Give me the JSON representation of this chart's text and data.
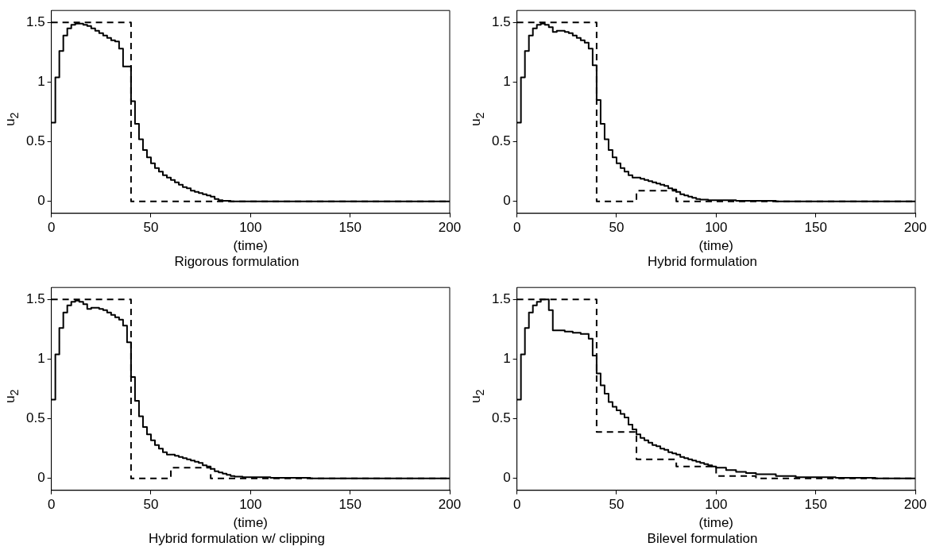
{
  "chart_data": [
    {
      "type": "step",
      "title": "Rigorous formulation",
      "xlabel": "(time)",
      "ylabel": "u$_{2}$",
      "xlim": [
        0,
        200
      ],
      "ylim": [
        -0.1,
        1.6
      ],
      "xticks": [
        0,
        50,
        100,
        150,
        200
      ],
      "yticks": [
        0,
        0.5,
        1,
        1.5
      ],
      "grid": false,
      "legend": false,
      "series": [
        {
          "color": "#000000",
          "line_style": "solid",
          "x": [
            0,
            2,
            4,
            6,
            8,
            10,
            12,
            14,
            16,
            18,
            20,
            22,
            24,
            26,
            28,
            30,
            32,
            34,
            36,
            38,
            40,
            42,
            44,
            46,
            48,
            50,
            52,
            54,
            56,
            58,
            60,
            62,
            64,
            66,
            68,
            70,
            72,
            74,
            76,
            78,
            80,
            82,
            84,
            86,
            90,
            200
          ],
          "values": [
            0.66,
            1.04,
            1.26,
            1.39,
            1.45,
            1.48,
            1.49,
            1.49,
            1.48,
            1.47,
            1.45,
            1.43,
            1.41,
            1.39,
            1.37,
            1.35,
            1.34,
            1.28,
            1.13,
            1.13,
            0.84,
            0.65,
            0.52,
            0.43,
            0.37,
            0.32,
            0.28,
            0.25,
            0.22,
            0.2,
            0.18,
            0.16,
            0.14,
            0.12,
            0.11,
            0.09,
            0.08,
            0.07,
            0.06,
            0.05,
            0.04,
            0.02,
            0.01,
            0.005,
            0,
            0
          ]
        },
        {
          "color": "#000000",
          "line_style": "dashed",
          "x": [
            0,
            40,
            200
          ],
          "values": [
            1.5,
            0,
            0
          ]
        }
      ]
    },
    {
      "type": "step",
      "title": "Hybrid formulation",
      "xlabel": "(time)",
      "ylabel": "u$_{2}$",
      "xlim": [
        0,
        200
      ],
      "ylim": [
        -0.1,
        1.6
      ],
      "xticks": [
        0,
        50,
        100,
        150,
        200
      ],
      "yticks": [
        0,
        0.5,
        1,
        1.5
      ],
      "grid": false,
      "legend": false,
      "series": [
        {
          "color": "#000000",
          "line_style": "solid",
          "x": [
            0,
            2,
            4,
            6,
            8,
            10,
            12,
            14,
            16,
            18,
            20,
            22,
            24,
            26,
            28,
            30,
            32,
            34,
            36,
            38,
            40,
            42,
            44,
            46,
            48,
            50,
            52,
            54,
            56,
            58,
            60,
            62,
            64,
            66,
            68,
            70,
            72,
            74,
            76,
            78,
            80,
            82,
            84,
            86,
            88,
            90,
            92,
            96,
            110,
            130,
            200
          ],
          "values": [
            0.66,
            1.04,
            1.26,
            1.39,
            1.45,
            1.48,
            1.49,
            1.48,
            1.46,
            1.42,
            1.43,
            1.43,
            1.42,
            1.41,
            1.39,
            1.37,
            1.35,
            1.33,
            1.28,
            1.14,
            0.85,
            0.65,
            0.52,
            0.43,
            0.37,
            0.32,
            0.28,
            0.25,
            0.22,
            0.2,
            0.2,
            0.19,
            0.18,
            0.17,
            0.16,
            0.15,
            0.14,
            0.13,
            0.11,
            0.1,
            0.08,
            0.06,
            0.05,
            0.04,
            0.03,
            0.02,
            0.015,
            0.01,
            0.005,
            0,
            0
          ]
        },
        {
          "color": "#000000",
          "line_style": "dashed",
          "x": [
            0,
            40,
            60,
            80,
            200
          ],
          "values": [
            1.5,
            0,
            0.09,
            0,
            0
          ]
        }
      ]
    },
    {
      "type": "step",
      "title": "Hybrid formulation w/ clipping",
      "xlabel": "(time)",
      "ylabel": "u$_{2}$",
      "xlim": [
        0,
        200
      ],
      "ylim": [
        -0.1,
        1.6
      ],
      "xticks": [
        0,
        50,
        100,
        150,
        200
      ],
      "yticks": [
        0,
        0.5,
        1,
        1.5
      ],
      "grid": false,
      "legend": false,
      "series": [
        {
          "color": "#000000",
          "line_style": "solid",
          "x": [
            0,
            2,
            4,
            6,
            8,
            10,
            12,
            14,
            16,
            18,
            20,
            22,
            24,
            26,
            28,
            30,
            32,
            34,
            36,
            38,
            40,
            42,
            44,
            46,
            48,
            50,
            52,
            54,
            56,
            58,
            60,
            62,
            64,
            66,
            68,
            70,
            72,
            74,
            76,
            78,
            80,
            82,
            84,
            86,
            88,
            90,
            92,
            96,
            110,
            130,
            200
          ],
          "values": [
            0.66,
            1.04,
            1.26,
            1.39,
            1.45,
            1.48,
            1.49,
            1.48,
            1.46,
            1.42,
            1.43,
            1.43,
            1.42,
            1.41,
            1.39,
            1.37,
            1.35,
            1.33,
            1.28,
            1.14,
            0.85,
            0.65,
            0.52,
            0.43,
            0.37,
            0.32,
            0.28,
            0.25,
            0.22,
            0.2,
            0.2,
            0.19,
            0.18,
            0.17,
            0.16,
            0.15,
            0.14,
            0.13,
            0.11,
            0.1,
            0.08,
            0.06,
            0.05,
            0.04,
            0.03,
            0.02,
            0.015,
            0.01,
            0.005,
            0,
            0
          ]
        },
        {
          "color": "#000000",
          "line_style": "dashed",
          "x": [
            0,
            40,
            60,
            80,
            200
          ],
          "values": [
            1.5,
            0,
            0.09,
            0,
            0
          ]
        }
      ]
    },
    {
      "type": "step",
      "title": "Bilevel formulation",
      "xlabel": "(time)",
      "ylabel": "u$_{2}$",
      "xlim": [
        0,
        200
      ],
      "ylim": [
        -0.1,
        1.6
      ],
      "xticks": [
        0,
        50,
        100,
        150,
        200
      ],
      "yticks": [
        0,
        0.5,
        1,
        1.5
      ],
      "grid": false,
      "legend": false,
      "series": [
        {
          "color": "#000000",
          "line_style": "solid",
          "x": [
            0,
            2,
            4,
            6,
            8,
            10,
            12,
            14,
            16,
            18,
            20,
            22,
            24,
            26,
            28,
            30,
            32,
            34,
            36,
            38,
            40,
            42,
            44,
            46,
            48,
            50,
            52,
            54,
            56,
            58,
            60,
            62,
            64,
            66,
            68,
            70,
            72,
            74,
            76,
            78,
            80,
            82,
            84,
            86,
            88,
            90,
            92,
            94,
            96,
            98,
            100,
            105,
            110,
            115,
            120,
            130,
            140,
            150,
            160,
            180,
            200
          ],
          "values": [
            0.66,
            1.04,
            1.26,
            1.39,
            1.45,
            1.48,
            1.5,
            1.5,
            1.41,
            1.24,
            1.24,
            1.24,
            1.23,
            1.23,
            1.22,
            1.22,
            1.21,
            1.21,
            1.17,
            1.03,
            0.88,
            0.78,
            0.71,
            0.64,
            0.6,
            0.57,
            0.54,
            0.51,
            0.45,
            0.41,
            0.37,
            0.34,
            0.32,
            0.3,
            0.28,
            0.27,
            0.25,
            0.24,
            0.22,
            0.21,
            0.2,
            0.18,
            0.17,
            0.16,
            0.15,
            0.14,
            0.13,
            0.12,
            0.11,
            0.1,
            0.09,
            0.07,
            0.055,
            0.045,
            0.035,
            0.02,
            0.01,
            0.01,
            0.005,
            0,
            0
          ]
        },
        {
          "color": "#000000",
          "line_style": "dashed",
          "x": [
            0,
            40,
            60,
            80,
            100,
            120,
            200
          ],
          "values": [
            1.5,
            0.39,
            0.16,
            0.1,
            0.02,
            0,
            0
          ]
        }
      ]
    }
  ]
}
